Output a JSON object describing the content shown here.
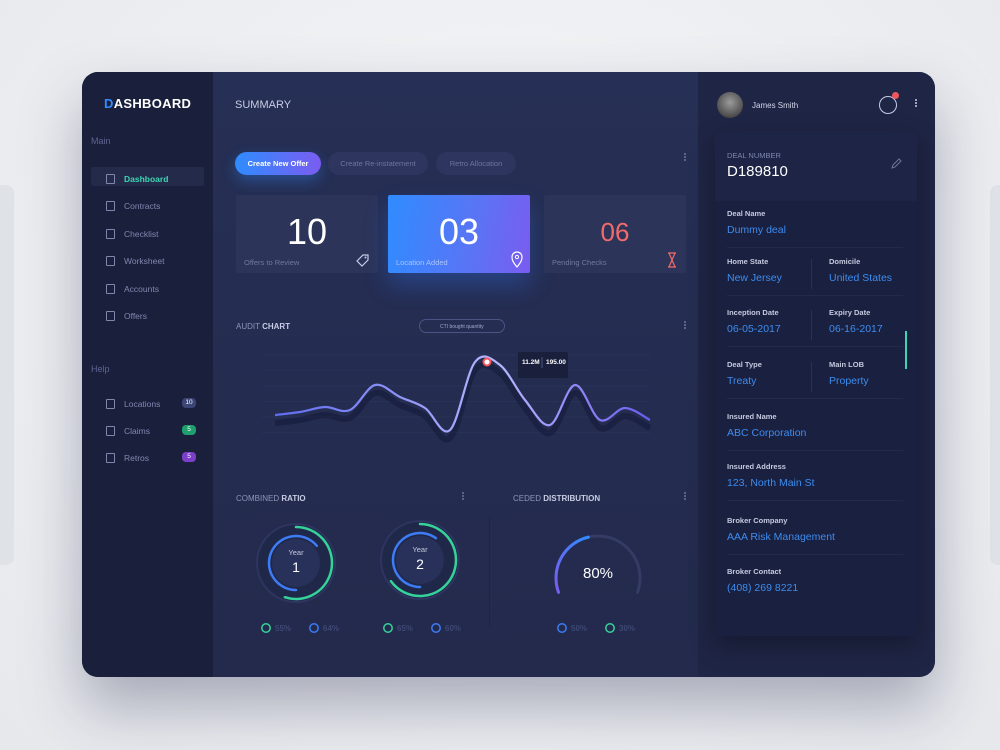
{
  "sidebar": {
    "brand": "DASHBOARD",
    "main_label": "Main",
    "nav": [
      "Dashboard",
      "Contracts",
      "Checklist",
      "Worksheet",
      "Accounts",
      "Offers"
    ],
    "help_label": "Help",
    "help_nav": [
      {
        "label": "Locations",
        "badge": "10"
      },
      {
        "label": "Claims",
        "badge": "5"
      },
      {
        "label": "Retros",
        "badge": "5"
      }
    ]
  },
  "summary": {
    "title": "SUMMARY",
    "buttons": [
      "Create New Offer",
      "Create Re-instatement",
      "Retro Allocation"
    ],
    "stats": [
      {
        "value": "10",
        "label": "Offers to Review"
      },
      {
        "value": "03",
        "label": "Location Added"
      },
      {
        "value": "06",
        "label": "Pending Checks"
      }
    ]
  },
  "audit_chart": {
    "title_light": "AUDIT",
    "title_bold": "CHART",
    "dropdown": "CTI bought quantity",
    "values": [
      25,
      28,
      33,
      30,
      55,
      43,
      32,
      10,
      78,
      75,
      40,
      15,
      55,
      20,
      32,
      20
    ],
    "tooltip": [
      "11.2M",
      "195.00"
    ]
  },
  "combined_ratio": {
    "title_light": "COMBINED",
    "title_bold": "RATIO",
    "rings": [
      {
        "label": "Year",
        "number": "1",
        "outer": {
          "value": 55,
          "label": "55%"
        },
        "inner": {
          "value": 64,
          "label": "64%"
        }
      },
      {
        "label": "Year",
        "number": "2",
        "outer": {
          "value": 65,
          "label": "65%"
        },
        "inner": {
          "value": 60,
          "label": "60%"
        }
      }
    ]
  },
  "ceded_distribution": {
    "title_light": "CEDED",
    "title_bold": "DISTRIBUTION",
    "gauge": {
      "value": 80,
      "label": "80%"
    },
    "legend": [
      {
        "value": 50,
        "label": "50%"
      },
      {
        "value": 30,
        "label": "30%"
      }
    ]
  },
  "user": {
    "name": "James Smith"
  },
  "deal": {
    "number_label": "DEAL NUMBER",
    "number": "D189810",
    "rows": [
      [
        {
          "label": "Deal Name",
          "value": "Dummy deal"
        }
      ],
      [
        {
          "label": "Home State",
          "value": "New Jersey"
        },
        {
          "label": "Domicile",
          "value": "United States"
        }
      ],
      [
        {
          "label": "Inception Date",
          "value": "06-05-2017"
        },
        {
          "label": "Expiry Date",
          "value": "06-16-2017"
        }
      ],
      [
        {
          "label": "Deal Type",
          "value": "Treaty"
        },
        {
          "label": "Main LOB",
          "value": "Property"
        }
      ],
      [
        {
          "label": "Insured Name",
          "value": "ABC Corporation"
        }
      ],
      [
        {
          "label": "Insured Address",
          "value": "123, North Main St"
        }
      ],
      [
        {
          "label": "Broker Company",
          "value": "AAA Risk Management"
        }
      ],
      [
        {
          "label": "Broker Contact",
          "value": "(408) 269 8221"
        }
      ]
    ]
  }
}
